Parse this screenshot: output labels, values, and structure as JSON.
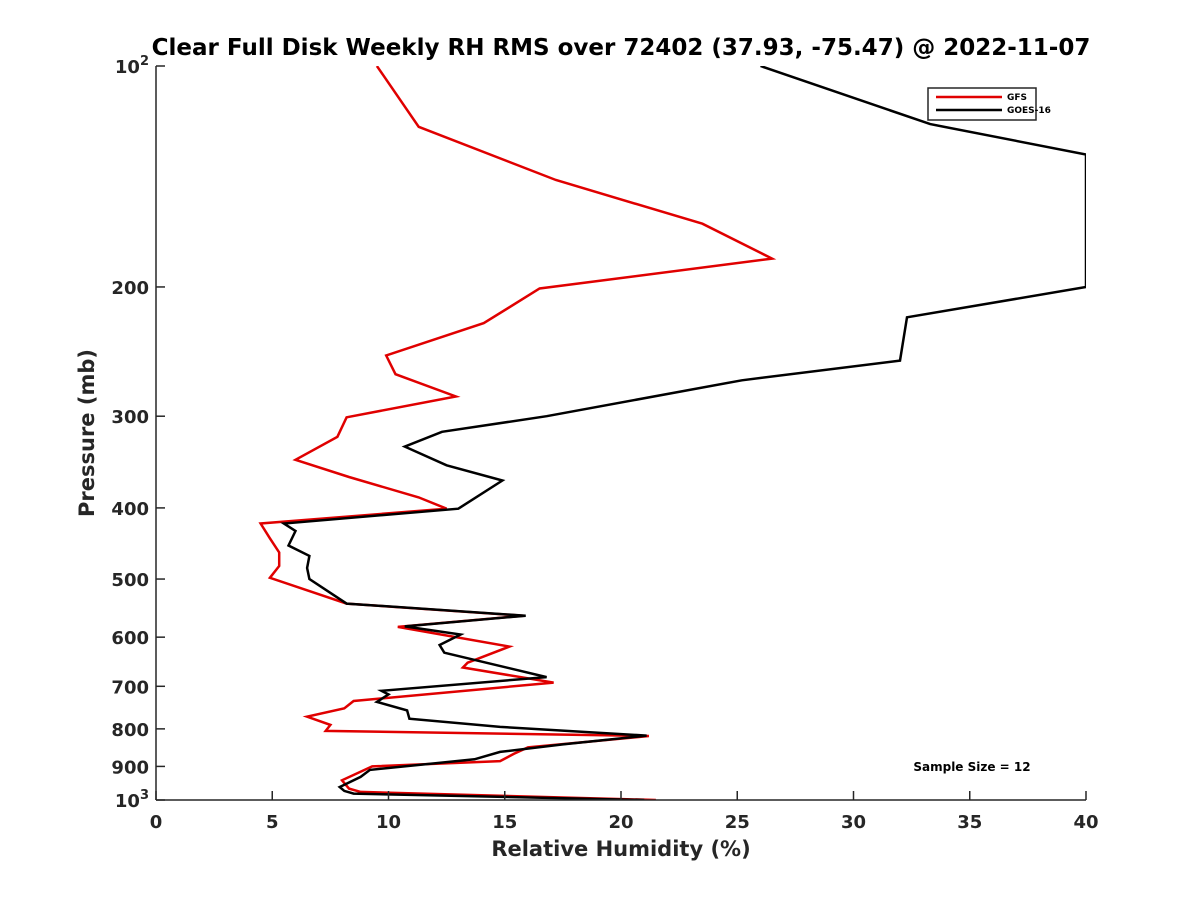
{
  "chart_data": {
    "type": "line",
    "title": "Clear Full Disk Weekly RH RMS over 72402 (37.93, -75.47) @ 2022-11-07",
    "xlabel": "Relative Humidity (%)",
    "ylabel": "Pressure (mb)",
    "xlim": [
      0,
      40
    ],
    "ylim": [
      100,
      1000
    ],
    "y_scale": "log",
    "y_reversed": true,
    "x_ticks": [
      0,
      5,
      10,
      15,
      20,
      25,
      30,
      35,
      40
    ],
    "x_tick_labels": [
      "0",
      "5",
      "10",
      "15",
      "20",
      "25",
      "30",
      "35",
      "40"
    ],
    "y_ticks": [
      100,
      200,
      300,
      400,
      500,
      600,
      700,
      800,
      900,
      1000
    ],
    "y_tick_labels": [
      {
        "base": "10",
        "exp": "2"
      },
      {
        "base": "200",
        "exp": ""
      },
      {
        "base": "300",
        "exp": ""
      },
      {
        "base": "400",
        "exp": ""
      },
      {
        "base": "500",
        "exp": ""
      },
      {
        "base": "600",
        "exp": ""
      },
      {
        "base": "700",
        "exp": ""
      },
      {
        "base": "800",
        "exp": ""
      },
      {
        "base": "900",
        "exp": ""
      },
      {
        "base": "10",
        "exp": "3"
      }
    ],
    "legend_position": "top-right",
    "annotation": "Sample Size = 12",
    "series": [
      {
        "name": "GFS",
        "color": "#e00000",
        "points": [
          [
            9.5,
            100
          ],
          [
            11.3,
            121
          ],
          [
            17.2,
            143
          ],
          [
            23.5,
            164
          ],
          [
            26.5,
            183
          ],
          [
            16.5,
            201
          ],
          [
            14.1,
            224
          ],
          [
            9.9,
            248
          ],
          [
            10.3,
            263
          ],
          [
            12.9,
            282
          ],
          [
            8.2,
            301
          ],
          [
            7.8,
            320
          ],
          [
            6.0,
            344
          ],
          [
            8.3,
            363
          ],
          [
            11.3,
            387
          ],
          [
            12.5,
            401
          ],
          [
            4.5,
            420
          ],
          [
            4.9,
            440
          ],
          [
            5.3,
            460
          ],
          [
            5.3,
            480
          ],
          [
            4.9,
            498
          ],
          [
            8.2,
            540
          ],
          [
            15.8,
            561
          ],
          [
            10.4,
            581
          ],
          [
            15.2,
            618
          ],
          [
            13.4,
            650
          ],
          [
            13.2,
            660
          ],
          [
            17.1,
            692
          ],
          [
            8.5,
            733
          ],
          [
            8.1,
            750
          ],
          [
            6.5,
            770
          ],
          [
            7.5,
            790
          ],
          [
            7.3,
            805
          ],
          [
            21.2,
            818
          ],
          [
            16.0,
            848
          ],
          [
            15.4,
            865
          ],
          [
            14.8,
            885
          ],
          [
            9.3,
            900
          ],
          [
            8.0,
            940
          ],
          [
            8.3,
            965
          ],
          [
            8.8,
            975
          ],
          [
            21.5,
            1000
          ]
        ]
      },
      {
        "name": "GOES-16",
        "color": "#000000",
        "points": [
          [
            26.0,
            100
          ],
          [
            33.3,
            120
          ],
          [
            40.0,
            132
          ],
          [
            40.0,
            200
          ],
          [
            32.3,
            220
          ],
          [
            32.0,
            252
          ],
          [
            25.2,
            268
          ],
          [
            16.8,
            300
          ],
          [
            12.3,
            315
          ],
          [
            10.7,
            330
          ],
          [
            12.5,
            350
          ],
          [
            14.9,
            367
          ],
          [
            13.0,
            401
          ],
          [
            5.5,
            420
          ],
          [
            6.0,
            430
          ],
          [
            5.7,
            450
          ],
          [
            6.6,
            465
          ],
          [
            6.5,
            483
          ],
          [
            6.6,
            500
          ],
          [
            8.2,
            540
          ],
          [
            15.9,
            561
          ],
          [
            10.7,
            580
          ],
          [
            13.1,
            595
          ],
          [
            12.2,
            615
          ],
          [
            12.4,
            630
          ],
          [
            16.8,
            680
          ],
          [
            9.7,
            710
          ],
          [
            10.0,
            718
          ],
          [
            9.5,
            735
          ],
          [
            10.8,
            755
          ],
          [
            10.9,
            775
          ],
          [
            14.8,
            795
          ],
          [
            21.1,
            817
          ],
          [
            17.5,
            840
          ],
          [
            14.8,
            860
          ],
          [
            13.7,
            880
          ],
          [
            9.2,
            910
          ],
          [
            8.8,
            930
          ],
          [
            7.9,
            960
          ],
          [
            8.1,
            972
          ],
          [
            8.5,
            980
          ],
          [
            21.0,
            1000
          ]
        ]
      }
    ]
  }
}
